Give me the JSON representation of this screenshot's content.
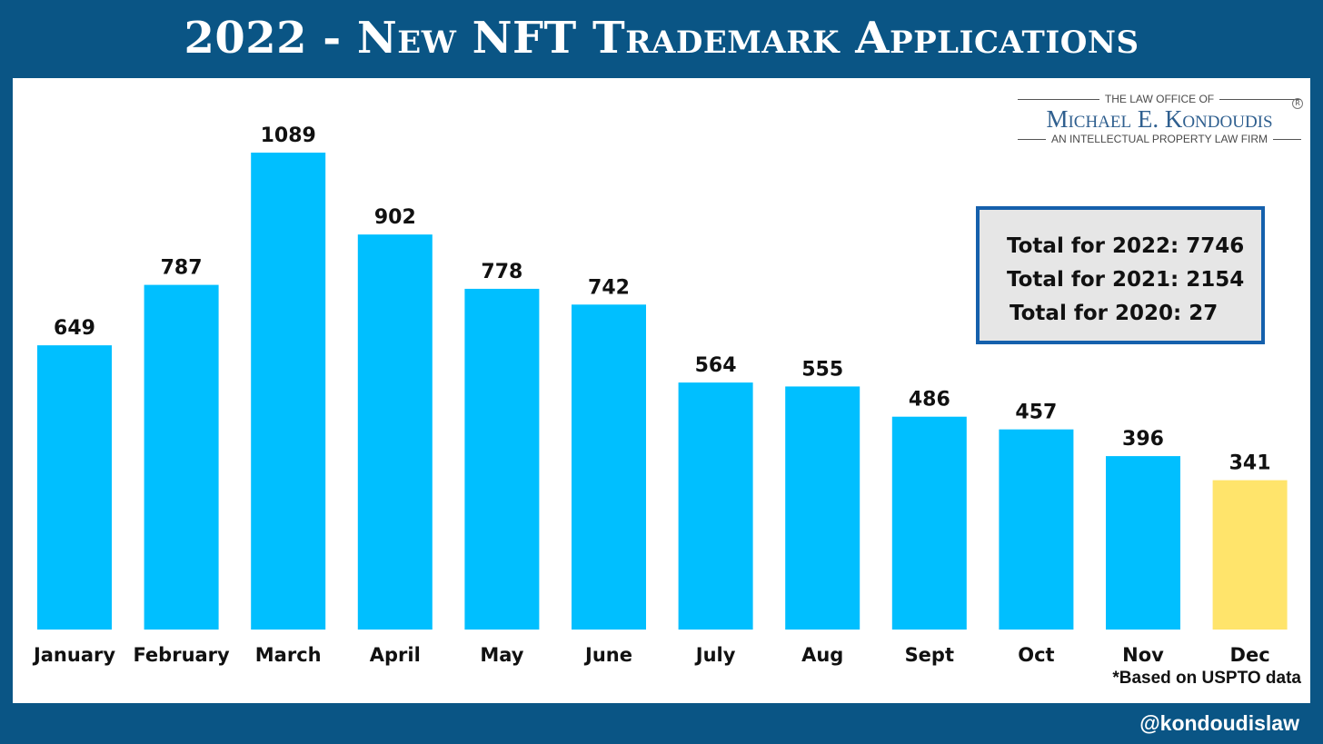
{
  "title": "2022 - New NFT Trademark Applications",
  "logo": {
    "top_line": "THE LAW OFFICE OF",
    "name": "Michael E. Kondoudis",
    "bottom_line": "AN INTELLECTUAL PROPERTY LAW FIRM",
    "registered_mark": "R"
  },
  "totals": [
    "Total for 2022: 7746",
    "Total for 2021: 2154",
    "Total for 2020: 27"
  ],
  "note": "*Based on USPTO data",
  "handle": "@kondoudislaw",
  "colors": {
    "background": "#0a5585",
    "bar": "#00bfff",
    "highlight_bar": "#ffe46b",
    "totals_border": "#1560ac"
  },
  "chart_data": {
    "type": "bar",
    "categories": [
      "January",
      "February",
      "March",
      "April",
      "May",
      "June",
      "July",
      "Aug",
      "Sept",
      "Oct",
      "Nov",
      "Dec"
    ],
    "values": [
      649,
      787,
      1089,
      902,
      778,
      742,
      564,
      555,
      486,
      457,
      396,
      341
    ],
    "data_labels": [
      "649",
      "787",
      "1089",
      "902",
      "778",
      "742",
      "564",
      "555",
      "486",
      "457",
      "396",
      "341"
    ],
    "highlight_category": "Dec",
    "ylim": [
      0,
      1089
    ],
    "grid": false,
    "legend": "none"
  }
}
